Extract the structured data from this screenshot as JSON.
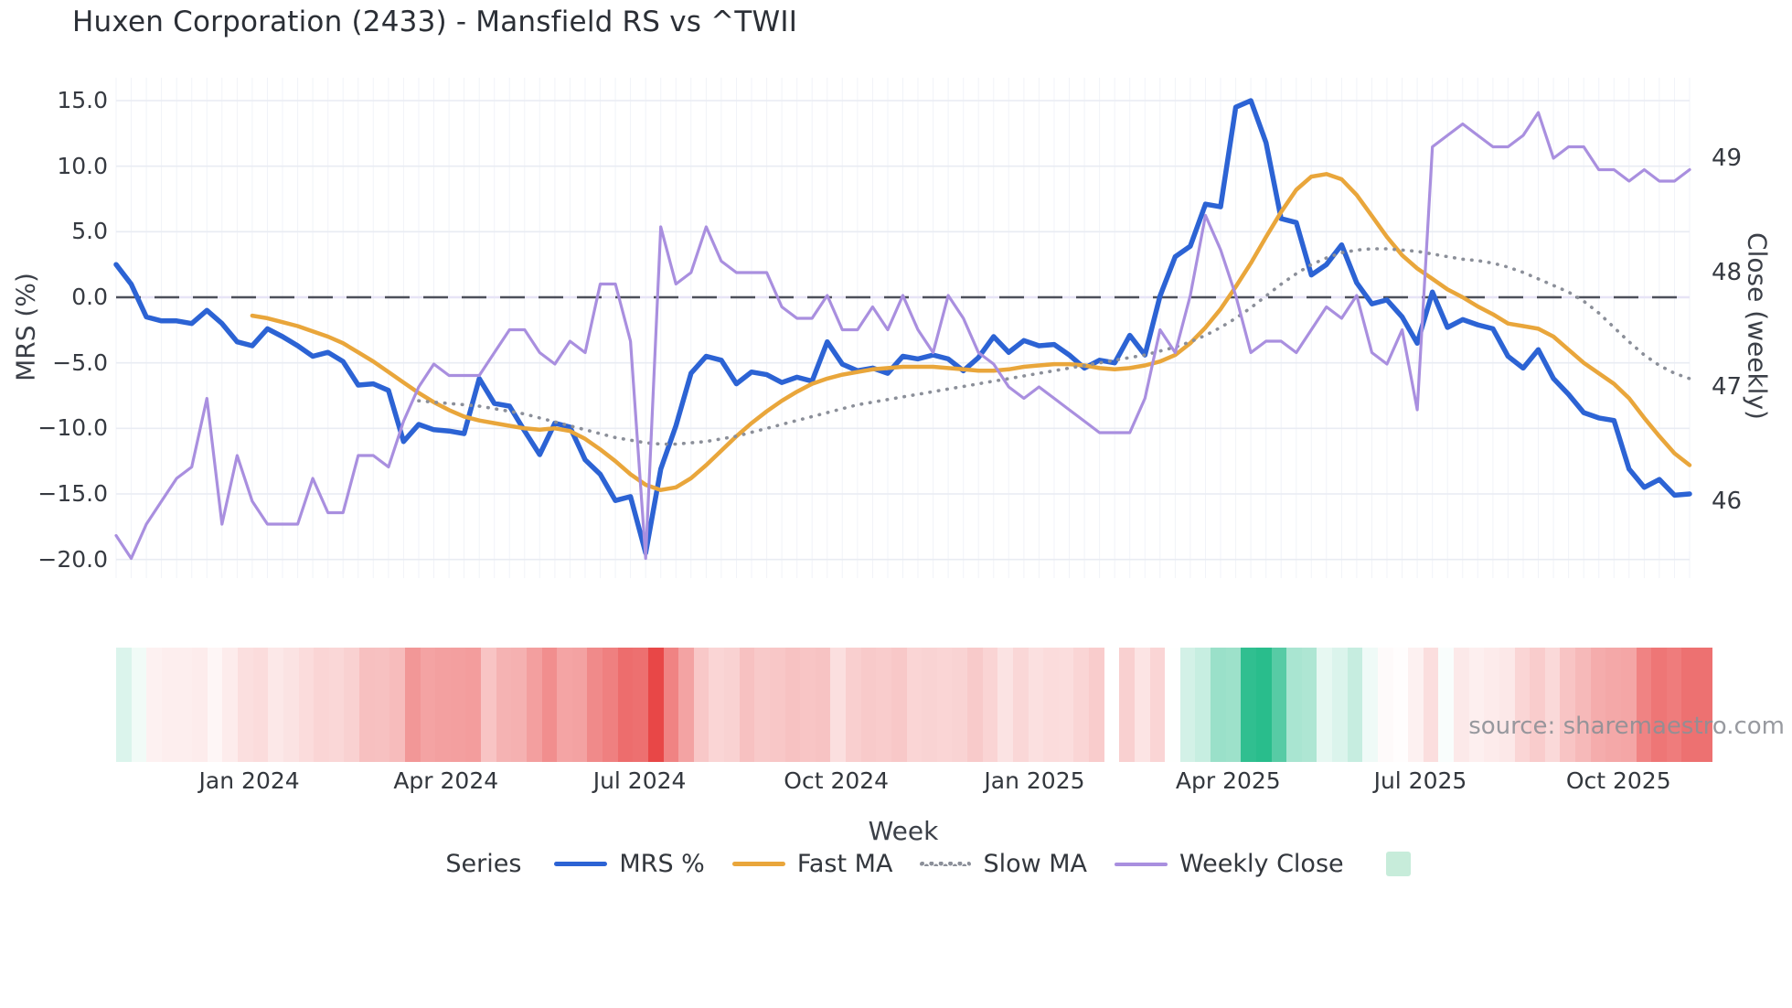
{
  "title": "Huxen Corporation (2433) - Mansfield RS vs ^TWII",
  "watermark": "source: sharemaestro.com",
  "axes": {
    "x_label": "Week",
    "y_left_label": "MRS (%)",
    "y_right_label": "Close (weekly)",
    "y_left_ticks": [
      {
        "label": "15.0",
        "value": 15
      },
      {
        "label": "10.0",
        "value": 10
      },
      {
        "label": "5.0",
        "value": 5
      },
      {
        "label": "0.0",
        "value": 0
      },
      {
        "label": "−5.0",
        "value": -5
      },
      {
        "label": "−10.0",
        "value": -10
      },
      {
        "label": "−15.0",
        "value": -15
      },
      {
        "label": "−20.0",
        "value": -20
      }
    ],
    "y_right_ticks": [
      {
        "label": "49",
        "value": 49
      },
      {
        "label": "48",
        "value": 48
      },
      {
        "label": "47",
        "value": 47
      },
      {
        "label": "46",
        "value": 46
      }
    ],
    "x_ticks": [
      {
        "label": "Jan 2024",
        "week": 8.8
      },
      {
        "label": "Apr 2024",
        "week": 21.8
      },
      {
        "label": "Jul 2024",
        "week": 34.6
      },
      {
        "label": "Oct 2024",
        "week": 47.6
      },
      {
        "label": "Jan 2025",
        "week": 60.7
      },
      {
        "label": "Apr 2025",
        "week": 73.5
      },
      {
        "label": "Jul 2025",
        "week": 86.2
      },
      {
        "label": "Oct 2025",
        "week": 99.3
      }
    ]
  },
  "legend": {
    "title": "Series",
    "items": [
      {
        "label": "MRS %",
        "color": "#2c63d4",
        "style": "solid"
      },
      {
        "label": "Fast MA",
        "color": "#e9a63b",
        "style": "solid"
      },
      {
        "label": "Slow MA",
        "color": "#8b8f99",
        "style": "dotted"
      },
      {
        "label": "Weekly Close",
        "color": "#a98fdf",
        "style": "thin"
      }
    ],
    "heatmap_swatch_color": "#c7ecda"
  },
  "chart_data": {
    "type": "line",
    "title": "Huxen Corporation (2433) - Mansfield RS vs ^TWII",
    "xlabel": "Week",
    "ylabel_left": "MRS (%)",
    "ylabel_right": "Close (weekly)",
    "x_unit": "week_index",
    "n_weeks": 105,
    "x_range_weeks": [
      0,
      104
    ],
    "y_left_range": [
      -21.4,
      16.8
    ],
    "y_right_range": [
      45.33,
      49.7
    ],
    "grid": true,
    "zero_dashed_line": 0,
    "legend_position": "bottom",
    "series": [
      {
        "name": "MRS %",
        "axis": "left",
        "color": "#2c63d4",
        "width": 5.5,
        "dash": "solid",
        "values": [
          2.5,
          1.0,
          -1.5,
          -1.8,
          -1.8,
          -2.0,
          -1.0,
          -2.0,
          -3.4,
          -3.7,
          -2.4,
          -3.0,
          -3.7,
          -4.5,
          -4.2,
          -4.9,
          -6.7,
          -6.6,
          -7.1,
          -11.0,
          -9.7,
          -10.1,
          -10.2,
          -10.4,
          -6.2,
          -8.1,
          -8.3,
          -10.2,
          -12.0,
          -9.6,
          -9.9,
          -12.4,
          -13.5,
          -15.5,
          -15.2,
          -19.5,
          -13.1,
          -9.8,
          -5.8,
          -4.5,
          -4.8,
          -6.6,
          -5.7,
          -5.9,
          -6.5,
          -6.1,
          -6.4,
          -3.4,
          -5.1,
          -5.6,
          -5.4,
          -5.8,
          -4.5,
          -4.7,
          -4.4,
          -4.7,
          -5.6,
          -4.6,
          -3.0,
          -4.2,
          -3.3,
          -3.7,
          -3.6,
          -4.4,
          -5.4,
          -4.8,
          -5.0,
          -2.9,
          -4.4,
          0.1,
          3.1,
          3.9,
          7.1,
          6.9,
          14.5,
          15.0,
          11.8,
          6.0,
          5.7,
          1.7,
          2.5,
          4.0,
          1.1,
          -0.5,
          -0.2,
          -1.5,
          -3.5,
          0.4,
          -2.3,
          -1.7,
          -2.1,
          -2.4,
          -4.5,
          -5.4,
          -4.0,
          -6.2,
          -7.4,
          -8.8,
          -9.2,
          -9.4,
          -13.1,
          -14.5,
          -13.9,
          -15.1,
          -15.0
        ]
      },
      {
        "name": "Fast MA",
        "axis": "left",
        "color": "#e9a63b",
        "width": 4.5,
        "dash": "solid",
        "values": [
          null,
          null,
          null,
          null,
          null,
          null,
          null,
          null,
          null,
          -1.4,
          -1.6,
          -1.9,
          -2.2,
          -2.6,
          -3.0,
          -3.5,
          -4.2,
          -4.9,
          -5.7,
          -6.5,
          -7.3,
          -8.0,
          -8.6,
          -9.1,
          -9.4,
          -9.6,
          -9.8,
          -10.0,
          -10.1,
          -10.0,
          -10.2,
          -10.8,
          -11.6,
          -12.5,
          -13.5,
          -14.3,
          -14.7,
          -14.5,
          -13.8,
          -12.8,
          -11.7,
          -10.6,
          -9.6,
          -8.7,
          -7.9,
          -7.2,
          -6.6,
          -6.2,
          -5.9,
          -5.7,
          -5.5,
          -5.4,
          -5.3,
          -5.3,
          -5.3,
          -5.4,
          -5.5,
          -5.6,
          -5.6,
          -5.5,
          -5.3,
          -5.2,
          -5.1,
          -5.1,
          -5.2,
          -5.4,
          -5.5,
          -5.4,
          -5.2,
          -4.9,
          -4.4,
          -3.5,
          -2.3,
          -0.9,
          0.8,
          2.6,
          4.6,
          6.5,
          8.2,
          9.2,
          9.4,
          9.0,
          7.8,
          6.2,
          4.6,
          3.2,
          2.2,
          1.4,
          0.6,
          0.0,
          -0.7,
          -1.3,
          -2.0,
          -2.2,
          -2.4,
          -3.0,
          -4.0,
          -5.0,
          -5.8,
          -6.6,
          -7.7,
          -9.2,
          -10.6,
          -11.9,
          -12.8
        ]
      },
      {
        "name": "Slow MA",
        "axis": "left",
        "color": "#8b8f99",
        "width": 3.6,
        "dash": "dot",
        "values": [
          null,
          null,
          null,
          null,
          null,
          null,
          null,
          null,
          null,
          null,
          null,
          null,
          null,
          null,
          null,
          null,
          null,
          null,
          null,
          null,
          -7.9,
          -8.0,
          -8.1,
          -8.2,
          -8.3,
          -8.5,
          -8.7,
          -8.9,
          -9.2,
          -9.5,
          -9.8,
          -10.1,
          -10.4,
          -10.7,
          -10.9,
          -11.1,
          -11.2,
          -11.2,
          -11.1,
          -11.0,
          -10.8,
          -10.6,
          -10.3,
          -10.0,
          -9.7,
          -9.4,
          -9.1,
          -8.8,
          -8.5,
          -8.2,
          -8.0,
          -7.8,
          -7.6,
          -7.4,
          -7.2,
          -7.0,
          -6.8,
          -6.6,
          -6.4,
          -6.2,
          -6.0,
          -5.8,
          -5.6,
          -5.4,
          -5.2,
          -5.0,
          -4.8,
          -4.6,
          -4.4,
          -4.1,
          -3.8,
          -3.4,
          -2.9,
          -2.3,
          -1.6,
          -0.8,
          0.1,
          1.0,
          1.8,
          2.5,
          3.0,
          3.4,
          3.6,
          3.7,
          3.7,
          3.6,
          3.5,
          3.3,
          3.1,
          2.9,
          2.8,
          2.6,
          2.3,
          1.9,
          1.4,
          0.9,
          0.4,
          -0.3,
          -1.2,
          -2.3,
          -3.4,
          -4.4,
          -5.2,
          -5.8,
          -6.2
        ]
      },
      {
        "name": "Weekly Close",
        "axis": "right",
        "color": "#a98fdf",
        "width": 3.2,
        "dash": "solid",
        "values": [
          45.7,
          45.5,
          45.8,
          46.0,
          46.2,
          46.3,
          46.9,
          45.8,
          46.4,
          46.0,
          45.8,
          45.8,
          45.8,
          46.2,
          45.9,
          45.9,
          46.4,
          46.4,
          46.3,
          46.7,
          47.0,
          47.2,
          47.1,
          47.1,
          47.1,
          47.3,
          47.5,
          47.5,
          47.3,
          47.2,
          47.4,
          47.3,
          47.9,
          47.9,
          47.4,
          45.5,
          48.4,
          47.9,
          48.0,
          48.4,
          48.1,
          48.0,
          48.0,
          48.0,
          47.7,
          47.6,
          47.6,
          47.8,
          47.5,
          47.5,
          47.7,
          47.5,
          47.8,
          47.5,
          47.3,
          47.8,
          47.6,
          47.3,
          47.2,
          47.0,
          46.9,
          47.0,
          46.9,
          46.8,
          46.7,
          46.6,
          46.6,
          46.6,
          46.9,
          47.5,
          47.3,
          47.8,
          48.5,
          48.2,
          47.8,
          47.3,
          47.4,
          47.4,
          47.3,
          47.5,
          47.7,
          47.6,
          47.8,
          47.3,
          47.2,
          47.5,
          46.8,
          49.1,
          49.2,
          49.3,
          49.2,
          49.1,
          49.1,
          49.2,
          49.4,
          49.0,
          49.1,
          49.1,
          48.9,
          48.9,
          48.8,
          48.9,
          48.8,
          48.8,
          48.9
        ]
      }
    ],
    "heatmap_strip": {
      "based_on": "MRS %",
      "gap_week_index": 65,
      "positive_max_color": "#29bd8c",
      "negative_max_color": "#e84747",
      "neutral_color": "#ffffff",
      "positive_scale_max": 15,
      "negative_scale_max": -19.5
    }
  }
}
